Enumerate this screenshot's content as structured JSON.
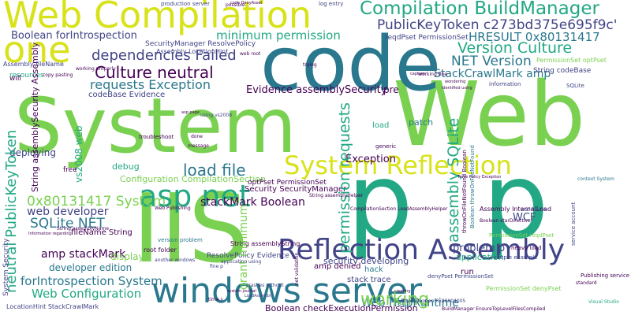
{
  "palette": {
    "yellow": "#d8e219",
    "lime": "#7ad151",
    "green": "#22a884",
    "teal": "#2a788e",
    "blue": "#414487",
    "purple": "#440154"
  },
  "words": [
    {
      "text": "System",
      "color": "lime"
    },
    {
      "text": "Web",
      "color": "lime"
    },
    {
      "text": "code",
      "color": "teal"
    },
    {
      "text": "p",
      "color": "green"
    },
    {
      "text": "p",
      "color": "green"
    },
    {
      "text": "IIS",
      "color": "lime"
    },
    {
      "text": "Web Compilation",
      "color": "yellow"
    },
    {
      "text": "one",
      "color": "yellow"
    },
    {
      "text": "windows server",
      "color": "teal"
    },
    {
      "text": "Reflection Assembly",
      "color": "blue"
    },
    {
      "text": "System Reflection",
      "color": "yellow"
    },
    {
      "text": "asp net",
      "color": "green"
    },
    {
      "text": "Compilation BuildManager",
      "color": "green"
    },
    {
      "text": "PublicKeyToken c273bd375e695f9c'",
      "color": "blue"
    },
    {
      "text": "HRESULT 0x80131417",
      "color": "teal"
    },
    {
      "text": "Version Culture",
      "color": "green"
    },
    {
      "text": "NET Version",
      "color": "teal"
    },
    {
      "text": "Culture neutral",
      "color": "purple"
    },
    {
      "text": "dependencies Failed",
      "color": "blue"
    },
    {
      "text": "minimum permission",
      "color": "green"
    },
    {
      "text": "Boolean forIntrospection",
      "color": "blue"
    },
    {
      "text": "requests Exception",
      "color": "teal"
    },
    {
      "text": "StackCrawlMark amp",
      "color": "teal"
    },
    {
      "text": "Evidence assemblySecurity",
      "color": "purple"
    },
    {
      "text": "load file",
      "color": "teal"
    },
    {
      "text": "0x80131417 System",
      "color": "lime"
    },
    {
      "text": "SQLite NET",
      "color": "teal"
    },
    {
      "text": "web developer",
      "color": "blue"
    },
    {
      "text": "amp stackMark",
      "color": "purple"
    },
    {
      "text": "developer edition",
      "color": "teal"
    },
    {
      "text": "forIntrospection System",
      "color": "teal"
    },
    {
      "text": "Web Configuration",
      "color": "green"
    },
    {
      "text": "Web HttpRuntime",
      "color": "teal"
    },
    {
      "text": "working",
      "color": "lime"
    },
    {
      "text": "stackMark Boolean",
      "color": "purple"
    },
    {
      "text": "Exception",
      "color": "purple"
    },
    {
      "text": "problem p",
      "color": "blue"
    },
    {
      "text": "application",
      "color": "green"
    },
    {
      "text": "WCF",
      "color": "blue"
    },
    {
      "text": "Boolean checkExecutionPermission",
      "color": "purple"
    },
    {
      "text": "Configuration CompilationSection",
      "color": "lime"
    },
    {
      "text": "Security SecurityManager",
      "color": "purple"
    },
    {
      "text": "optPset PermissionSet",
      "color": "purple"
    },
    {
      "text": "fileName String",
      "color": "purple"
    },
    {
      "text": "codeBase Evidence",
      "color": "blue"
    },
    {
      "text": "SecurityManager ResolvePolicy",
      "color": "blue"
    },
    {
      "text": "String codeBase",
      "color": "blue"
    },
    {
      "text": "PermissionSet optPset",
      "color": "lime"
    },
    {
      "text": "production server",
      "color": "blue"
    },
    {
      "text": "reqdPset PermissionSet",
      "color": "blue"
    },
    {
      "text": "pre",
      "color": "purple"
    },
    {
      "text": "Assembly InternalLoad",
      "color": "purple"
    },
    {
      "text": "ResolvePolicy Evidence",
      "color": "blue"
    },
    {
      "text": "amp denied",
      "color": "purple"
    },
    {
      "text": "security developing",
      "color": "blue"
    },
    {
      "text": "hack",
      "color": "teal"
    },
    {
      "text": "stack trace",
      "color": "blue"
    },
    {
      "text": "String assemblyString",
      "color": "purple"
    },
    {
      "text": "version problem",
      "color": "teal"
    },
    {
      "text": "root folder",
      "color": "purple"
    },
    {
      "text": "display",
      "color": "lime"
    },
    {
      "text": "debug",
      "color": "green"
    },
    {
      "text": "deploying",
      "color": "blue"
    },
    {
      "text": "load",
      "color": "green"
    },
    {
      "text": "patch",
      "color": "teal"
    },
    {
      "text": "run",
      "color": "purple"
    },
    {
      "text": "resources",
      "color": "green"
    },
    {
      "text": "will",
      "color": "purple"
    },
    {
      "text": "free",
      "color": "purple"
    },
    {
      "text": "String assemblySecurity Assembly",
      "color": "purple"
    },
    {
      "text": "neutral PublicKeyToken",
      "color": "green"
    },
    {
      "text": "vs2008 web",
      "color": "green"
    },
    {
      "text": "permission requests",
      "color": "green"
    },
    {
      "text": "assembly SQLite",
      "color": "green"
    },
    {
      "text": "grant minimum",
      "color": "lime"
    },
    {
      "text": "System Security",
      "color": "blue"
    },
    {
      "text": "Assembly LocationHint",
      "color": "blue"
    },
    {
      "text": "LocationHint StackCrawlMark",
      "color": "blue"
    },
    {
      "text": "working properly",
      "color": "purple"
    },
    {
      "text": "copy pasting",
      "color": "purple"
    },
    {
      "text": "troubleshoot",
      "color": "purple"
    },
    {
      "text": "another windows",
      "color": "blue"
    },
    {
      "text": "application using",
      "color": "blue"
    },
    {
      "text": "using vs2008",
      "color": "blue"
    },
    {
      "text": "String assemblyName",
      "color": "purple"
    },
    {
      "text": "Publishing service",
      "color": "purple"
    },
    {
      "text": "simple example",
      "color": "blue"
    },
    {
      "text": "heavy load",
      "color": "purple"
    },
    {
      "text": "world wide",
      "color": "blue"
    },
    {
      "text": "information",
      "color": "blue"
    },
    {
      "text": "generic",
      "color": "purple"
    },
    {
      "text": "crashes without",
      "color": "blue"
    },
    {
      "text": "BuildManager EnsureTopLevelFilesCompiled",
      "color": "purple"
    },
    {
      "text": "HttpException 0x80004005",
      "color": "blue"
    },
    {
      "text": "Visual Studio",
      "color": "green"
    },
    {
      "text": "denyPset PermissionSet",
      "color": "blue"
    },
    {
      "text": "PermissionSet denyPset",
      "color": "lime"
    },
    {
      "text": "code DenyAsset",
      "color": "purple"
    },
    {
      "text": "log entry",
      "color": "blue"
    },
    {
      "text": "Web Publishing",
      "color": "purple"
    },
    {
      "text": "SQLite",
      "color": "blue"
    },
    {
      "text": "context System",
      "color": "teal"
    },
    {
      "text": "working fine",
      "color": "purple"
    },
    {
      "text": "Boolean throwOnFileNotFound",
      "color": "teal"
    },
    {
      "text": "throwOnFileNotFound Boolean",
      "color": "purple"
    },
    {
      "text": "Security SecurityManager",
      "color": "purple"
    },
    {
      "text": "CompilationSection LoadAssemblyHelper",
      "color": "purple"
    },
    {
      "text": "String assemblyHelper",
      "color": "purple"
    },
    {
      "text": "service account",
      "color": "blue"
    },
    {
      "text": "PermissionSet reqdPset",
      "color": "lime"
    },
    {
      "text": "Boolean starDirective",
      "color": "purple"
    },
    {
      "text": "capture",
      "color": "purple"
    },
    {
      "text": "fine p",
      "color": "blue"
    },
    {
      "text": "wondering",
      "color": "purple"
    },
    {
      "text": "identified using",
      "color": "purple"
    },
    {
      "text": "Assembly fileName",
      "color": "blue"
    },
    {
      "text": "web root",
      "color": "purple"
    },
    {
      "text": "trying",
      "color": "purple"
    },
    {
      "text": "done",
      "color": "purple"
    },
    {
      "text": "message",
      "color": "purple"
    },
    {
      "text": "standard",
      "color": "purple"
    },
    {
      "text": "asp page",
      "color": "purple"
    },
    {
      "text": "net validation",
      "color": "purple"
    },
    {
      "text": "system journal",
      "color": "purple"
    },
    {
      "text": "Information regarding",
      "color": "purple"
    },
    {
      "text": "creating",
      "color": "purple"
    },
    {
      "text": "time s",
      "color": "purple"
    },
    {
      "text": "Trace Policy Exception",
      "color": "purple"
    },
    {
      "text": "LoadAssembly",
      "color": "blue"
    },
    {
      "text": "possible",
      "color": "purple"
    }
  ]
}
